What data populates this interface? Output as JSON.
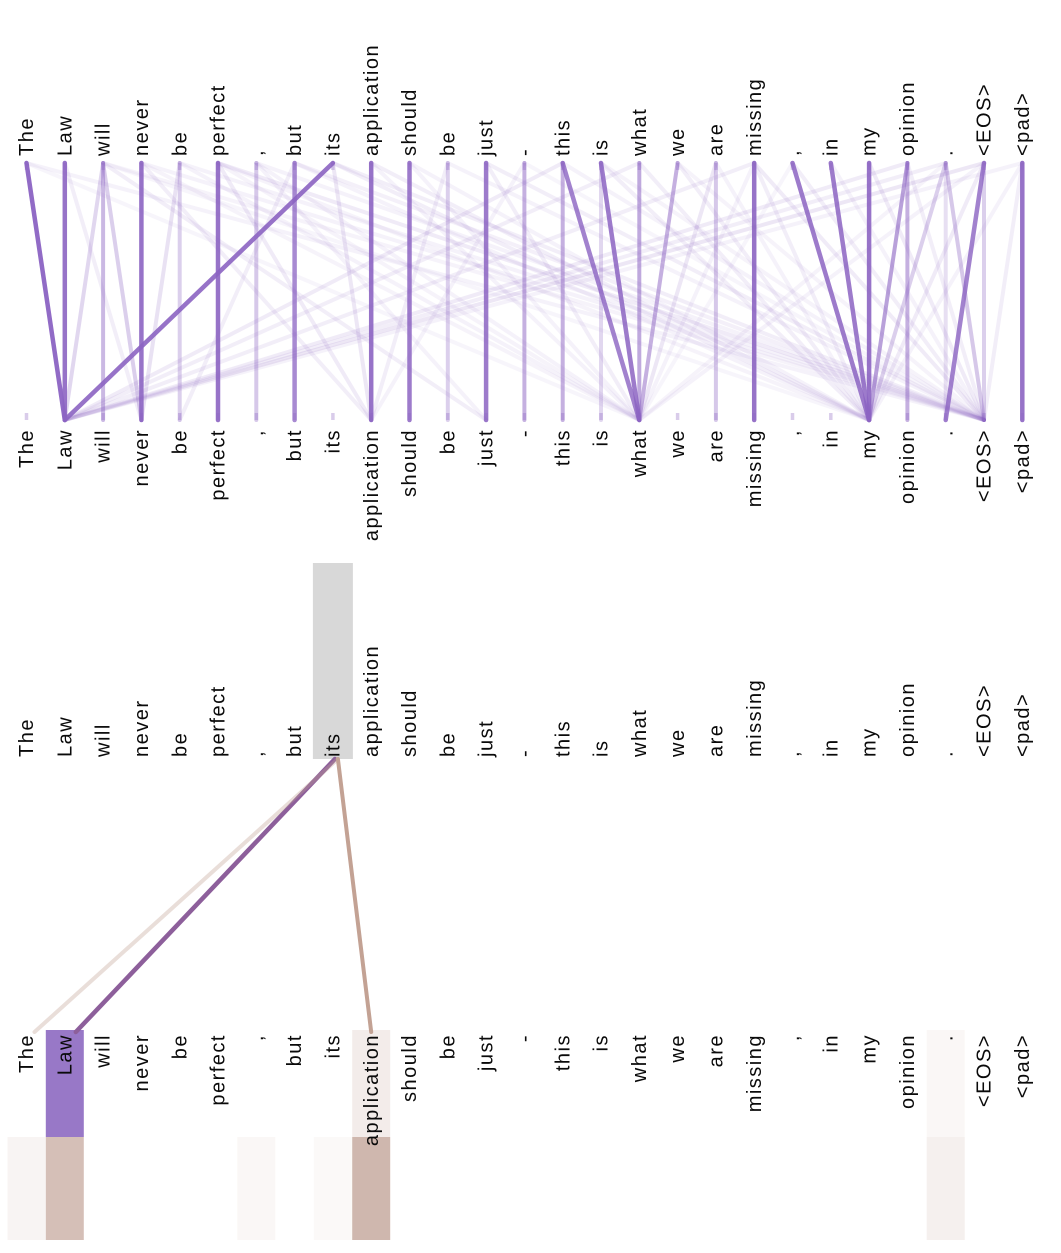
{
  "tokens": [
    "The",
    "Law",
    "will",
    "never",
    "be",
    "perfect",
    ",",
    "but",
    "its",
    "application",
    "should",
    "be",
    "just",
    "-",
    "this",
    "is",
    "what",
    "we",
    "are",
    "missing",
    ",",
    "in",
    "my",
    "opinion",
    ".",
    "<EOS>",
    "<pad>"
  ],
  "colors": {
    "line_purple": "#8c64c3",
    "tick_purple": "#9470c4",
    "detail_line_purple": "#8d5f9b",
    "selected_token_gray": "#d8d8d8",
    "law_highlight_purple": "#9878c7",
    "detail_line_tan": "#c3a294",
    "bar_tan": "#b28a7c",
    "text_black": "#0a0a0a"
  },
  "chart_data": [
    {
      "type": "attention-bipartite",
      "title": "",
      "description": "Attention-head view: every token of the sentence (top row) connected to every token (bottom row) by purple lines whose opacity encodes attention weight.",
      "tokens_top": [
        "The",
        "Law",
        "will",
        "never",
        "be",
        "perfect",
        ",",
        "but",
        "its",
        "application",
        "should",
        "be",
        "just",
        "-",
        "this",
        "is",
        "what",
        "we",
        "are",
        "missing",
        ",",
        "in",
        "my",
        "opinion",
        ".",
        "<EOS>",
        "<pad>"
      ],
      "tokens_bottom": [
        "The",
        "Law",
        "will",
        "never",
        "be",
        "perfect",
        ",",
        "but",
        "its",
        "application",
        "should",
        "be",
        "just",
        "-",
        "this",
        "is",
        "what",
        "we",
        "are",
        "missing",
        ",",
        "in",
        "my",
        "opinion",
        ".",
        "<EOS>",
        "<pad>"
      ],
      "edges": [
        [
          0,
          1,
          0.95
        ],
        [
          1,
          1,
          0.9
        ],
        [
          8,
          1,
          0.9
        ],
        [
          2,
          1,
          0.25
        ],
        [
          3,
          3,
          0.9
        ],
        [
          2,
          2,
          0.45
        ],
        [
          2,
          3,
          0.3
        ],
        [
          4,
          3,
          0.18
        ],
        [
          4,
          4,
          0.3
        ],
        [
          5,
          5,
          0.9
        ],
        [
          6,
          6,
          0.35
        ],
        [
          7,
          7,
          0.75
        ],
        [
          9,
          9,
          0.9
        ],
        [
          10,
          10,
          0.85
        ],
        [
          11,
          11,
          0.3
        ],
        [
          12,
          12,
          0.85
        ],
        [
          13,
          13,
          0.5
        ],
        [
          14,
          14,
          0.5
        ],
        [
          15,
          15,
          0.25
        ],
        [
          16,
          16,
          0.55
        ],
        [
          14,
          16,
          0.8
        ],
        [
          15,
          16,
          0.85
        ],
        [
          17,
          16,
          0.5
        ],
        [
          18,
          16,
          0.15
        ],
        [
          18,
          18,
          0.35
        ],
        [
          19,
          19,
          0.9
        ],
        [
          20,
          22,
          0.85
        ],
        [
          21,
          22,
          0.85
        ],
        [
          22,
          22,
          0.9
        ],
        [
          23,
          22,
          0.6
        ],
        [
          23,
          23,
          0.5
        ],
        [
          24,
          22,
          0.3
        ],
        [
          24,
          24,
          0.2
        ],
        [
          24,
          25,
          0.35
        ],
        [
          25,
          24,
          0.8
        ],
        [
          25,
          25,
          0.3
        ],
        [
          26,
          26,
          0.9
        ],
        [
          8,
          25,
          0.1
        ],
        [
          0,
          25,
          0.08
        ],
        [
          5,
          25,
          0.12
        ],
        [
          9,
          22,
          0.1
        ],
        [
          14,
          1,
          0.12
        ],
        [
          19,
          1,
          0.1
        ],
        [
          23,
          1,
          0.12
        ],
        [
          25,
          1,
          0.15
        ],
        [
          16,
          1,
          0.1
        ],
        [
          12,
          25,
          0.1
        ],
        [
          6,
          16,
          0.08
        ],
        [
          10,
          16,
          0.08
        ],
        [
          2,
          12,
          0.1
        ],
        [
          3,
          9,
          0.1
        ],
        [
          5,
          9,
          0.12
        ],
        [
          7,
          4,
          0.1
        ],
        [
          11,
          9,
          0.1
        ],
        [
          13,
          9,
          0.08
        ],
        [
          17,
          22,
          0.1
        ],
        [
          18,
          22,
          0.08
        ],
        [
          20,
          25,
          0.1
        ],
        [
          21,
          25,
          0.08
        ],
        [
          22,
          25,
          0.12
        ],
        [
          23,
          25,
          0.1
        ],
        [
          26,
          25,
          0.1
        ],
        [
          1,
          3,
          0.1
        ],
        [
          4,
          16,
          0.08
        ],
        [
          6,
          12,
          0.08
        ],
        [
          8,
          9,
          0.15
        ],
        [
          9,
          16,
          0.08
        ],
        [
          15,
          22,
          0.1
        ],
        [
          16,
          22,
          0.1
        ],
        [
          19,
          25,
          0.12
        ],
        [
          12,
          16,
          0.1
        ],
        [
          10,
          22,
          0.08
        ],
        [
          3,
          16,
          0.07
        ],
        [
          5,
          16,
          0.07
        ],
        [
          0,
          16,
          0.06
        ],
        [
          2,
          22,
          0.06
        ],
        [
          25,
          22,
          0.12
        ],
        [
          24,
          1,
          0.1
        ],
        [
          6,
          25,
          0.08
        ],
        [
          11,
          25,
          0.08
        ],
        [
          13,
          25,
          0.06
        ],
        [
          17,
          25,
          0.07
        ],
        [
          14,
          25,
          0.08
        ],
        [
          15,
          25,
          0.07
        ],
        [
          4,
          25,
          0.08
        ],
        [
          3,
          25,
          0.08
        ],
        [
          2,
          25,
          0.07
        ],
        [
          7,
          25,
          0.09
        ],
        [
          8,
          22,
          0.1
        ],
        [
          7,
          22,
          0.08
        ],
        [
          5,
          22,
          0.07
        ],
        [
          26,
          22,
          0.08
        ],
        [
          26,
          1,
          0.08
        ],
        [
          25,
          16,
          0.08
        ],
        [
          24,
          16,
          0.07
        ],
        [
          20,
          16,
          0.06
        ],
        [
          19,
          16,
          0.08
        ],
        [
          19,
          22,
          0.1
        ]
      ],
      "legend_position": "none",
      "grid": false
    },
    {
      "type": "attention-detail",
      "title": "",
      "description": "Detail view for the selected token 'its' (gray highlight): attention edges to 'Law' (purple head) and 'application' (tan head); column tints below show per-token attention strength for each head.",
      "selected_token": "its",
      "selected_index": 8,
      "edges": [
        {
          "target": "Law",
          "target_index": 1,
          "color": "purple",
          "weight": 0.92
        },
        {
          "target": "application",
          "target_index": 9,
          "color": "tan",
          "weight": 0.75
        },
        {
          "target": "The",
          "target_index": 0,
          "color": "tan",
          "weight": 0.12
        }
      ],
      "label_band_highlights": [
        {
          "token": "Law",
          "index": 1,
          "color": "purple",
          "opacity": 1.0
        },
        {
          "token": "application",
          "index": 9,
          "color": "tan",
          "opacity": 0.16
        },
        {
          "token": ".",
          "index": 24,
          "color": "tan",
          "opacity": 0.07,
          "extent": "full"
        }
      ],
      "bar_strip": [
        {
          "token": "The",
          "index": 0,
          "opacity": 0.09
        },
        {
          "token": "Law",
          "index": 1,
          "opacity": 0.55
        },
        {
          "token": ",",
          "index": 6,
          "opacity": 0.07
        },
        {
          "token": "its",
          "index": 8,
          "opacity": 0.05
        },
        {
          "token": "application",
          "index": 9,
          "opacity": 0.62
        },
        {
          "token": ".",
          "index": 24,
          "opacity": 0.06
        }
      ],
      "legend_position": "none",
      "grid": false
    }
  ]
}
